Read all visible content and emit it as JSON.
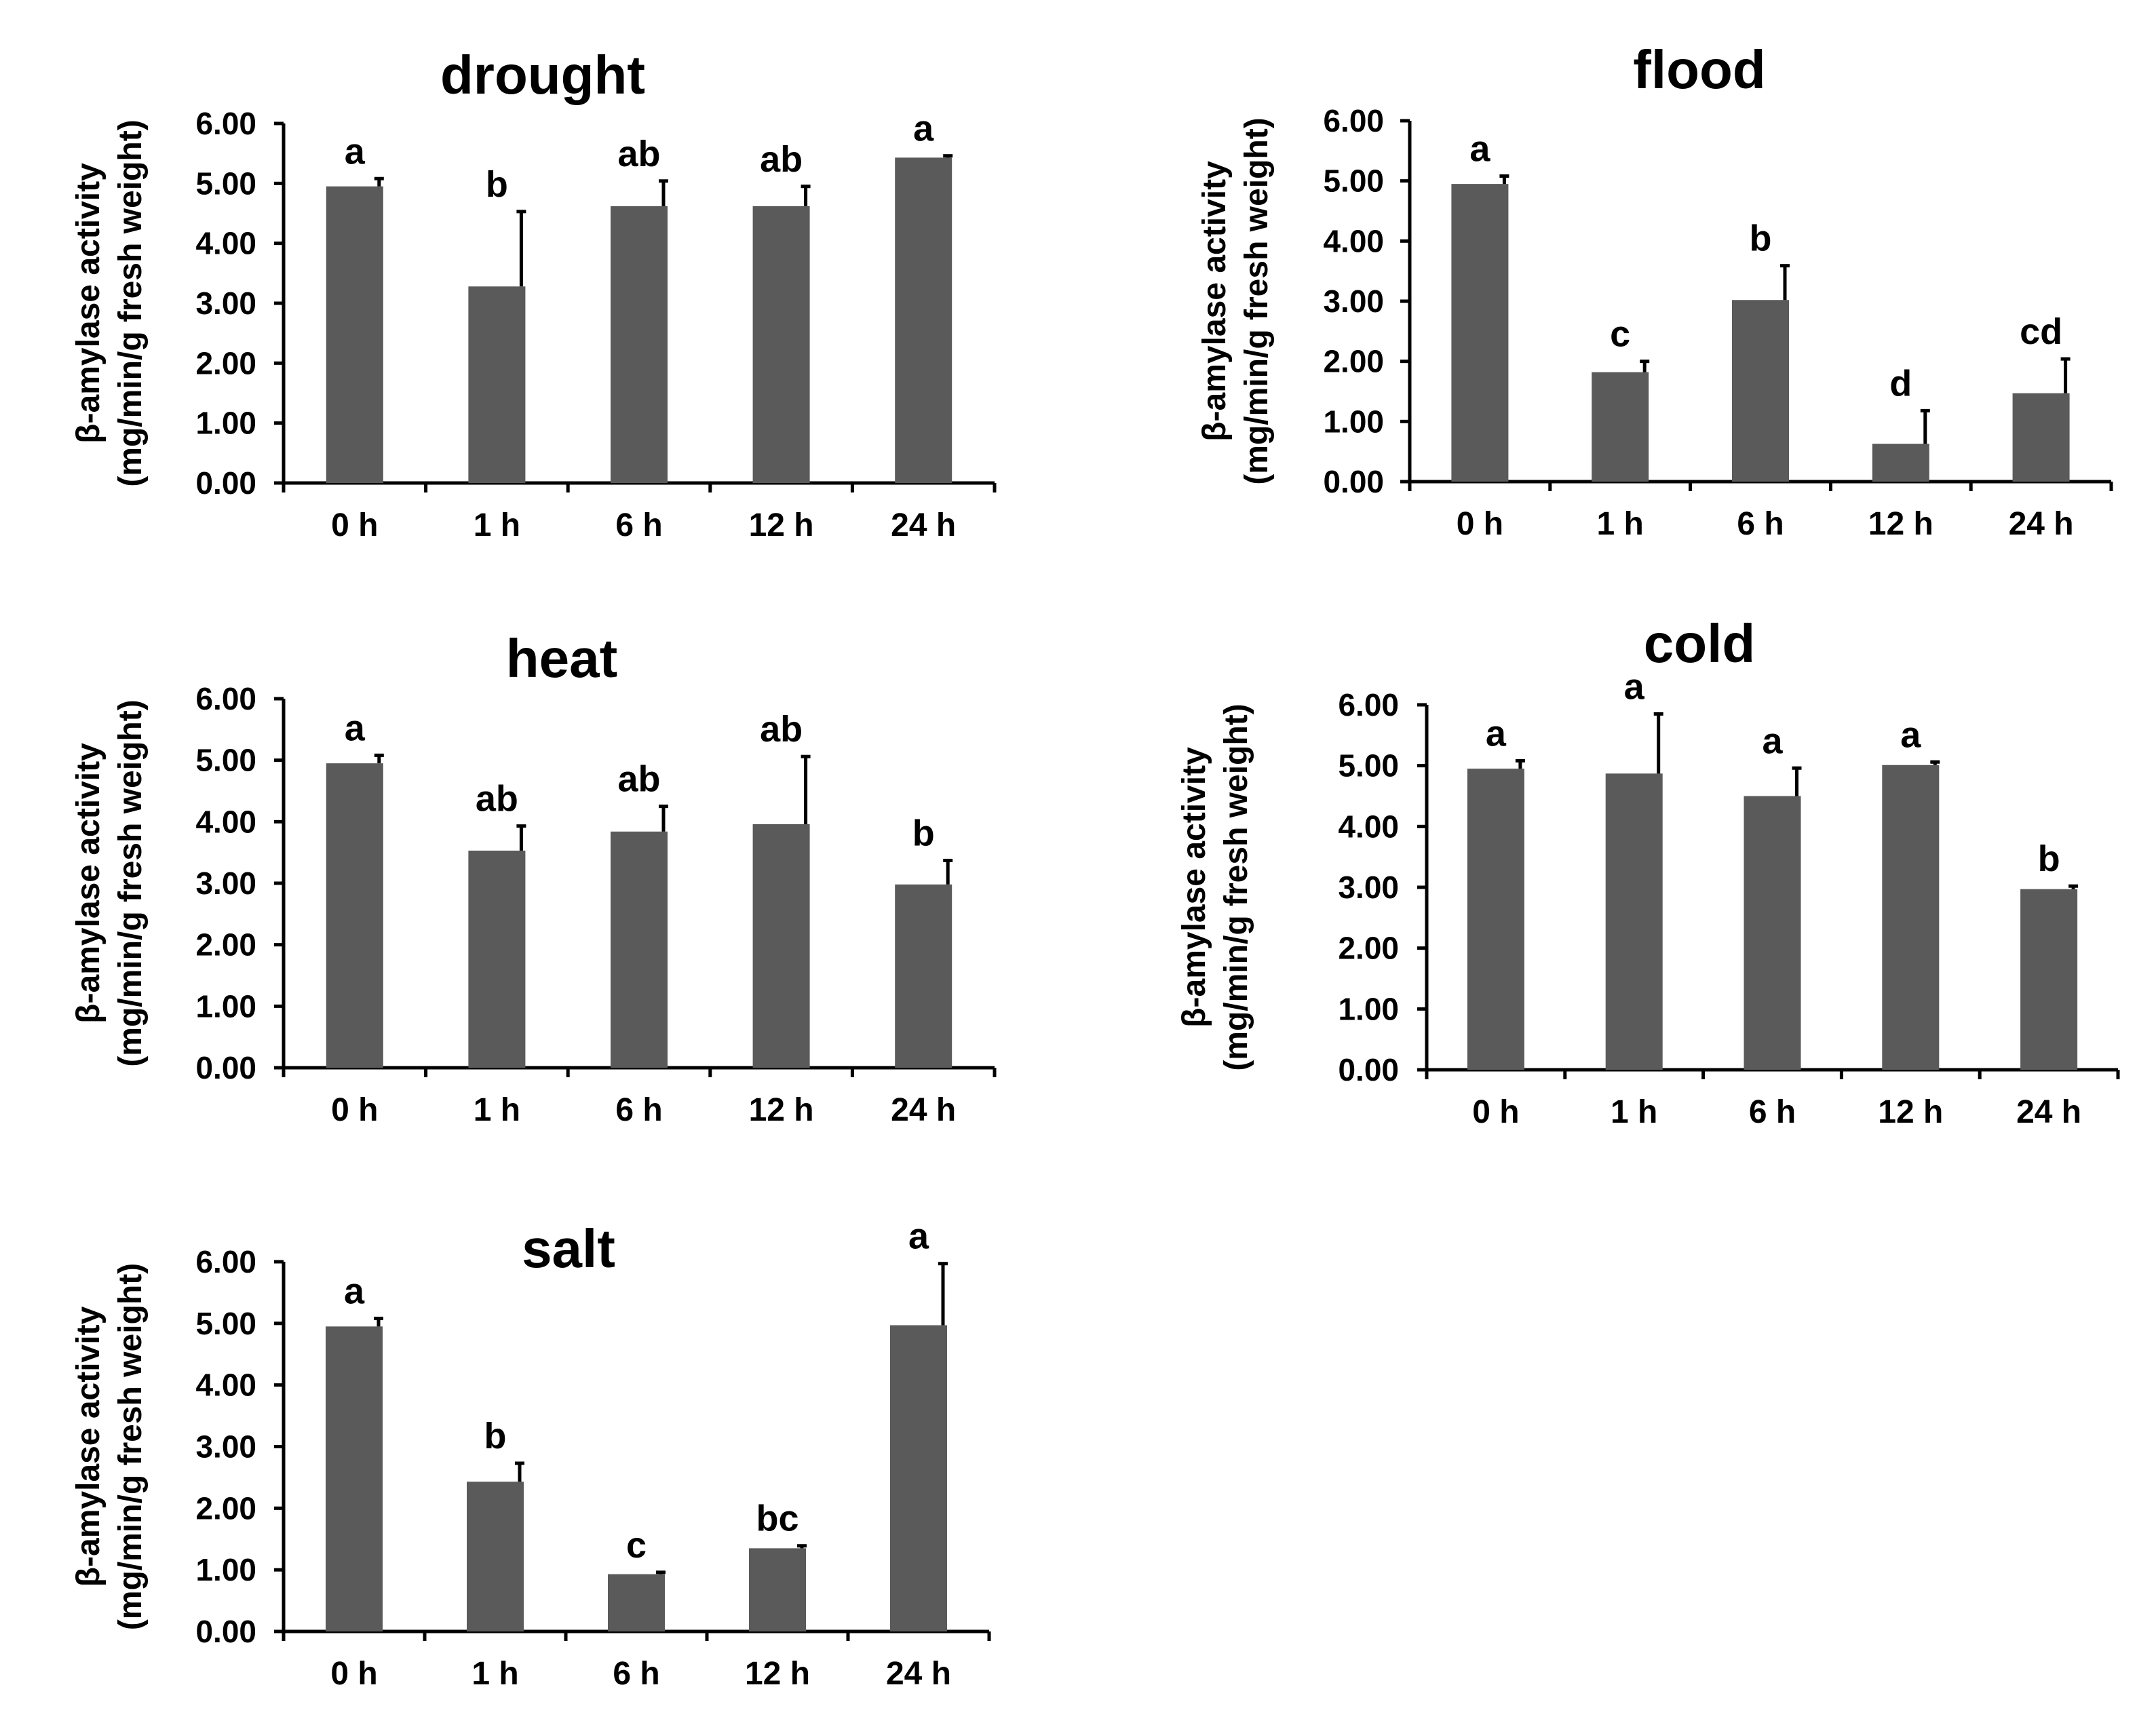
{
  "chart_data": [
    {
      "type": "bar",
      "title": "drought",
      "ylabel": [
        "β-amylase activity",
        "(mg/min/g fresh weight)"
      ],
      "xlabel": "",
      "categories": [
        "0 h",
        "1 h",
        "6 h",
        "12 h",
        "24 h"
      ],
      "values": [
        4.95,
        3.28,
        4.62,
        4.62,
        5.43
      ],
      "errors": [
        0.13,
        1.25,
        0.42,
        0.33,
        0.03
      ],
      "significance": [
        "a",
        "b",
        "ab",
        "ab",
        "a"
      ],
      "ylim": [
        0,
        6
      ],
      "yticks": [
        "0.00",
        "1.00",
        "2.00",
        "3.00",
        "4.00",
        "5.00",
        "6.00"
      ],
      "color": "#5a5a5a"
    },
    {
      "type": "bar",
      "title": "flood",
      "ylabel": [
        "β-amylase activity",
        "(mg/min/g fresh weight)"
      ],
      "xlabel": "",
      "categories": [
        "0 h",
        "1 h",
        "6 h",
        "12 h",
        "24 h"
      ],
      "values": [
        4.95,
        1.82,
        3.02,
        0.63,
        1.47
      ],
      "errors": [
        0.13,
        0.18,
        0.57,
        0.55,
        0.57
      ],
      "significance": [
        "a",
        "c",
        "b",
        "d",
        "cd"
      ],
      "ylim": [
        0,
        6
      ],
      "yticks": [
        "0.00",
        "1.00",
        "2.00",
        "3.00",
        "4.00",
        "5.00",
        "6.00"
      ],
      "color": "#5a5a5a"
    },
    {
      "type": "bar",
      "title": "heat",
      "ylabel": [
        "β-amylase activity",
        "(mg/min/g fresh weight)"
      ],
      "xlabel": "",
      "categories": [
        "0 h",
        "1 h",
        "6 h",
        "12 h",
        "24 h"
      ],
      "values": [
        4.95,
        3.53,
        3.84,
        3.96,
        2.98
      ],
      "errors": [
        0.13,
        0.4,
        0.41,
        1.1,
        0.39
      ],
      "significance": [
        "a",
        "ab",
        "ab",
        "ab",
        "b"
      ],
      "ylim": [
        0,
        6
      ],
      "yticks": [
        "0.00",
        "1.00",
        "2.00",
        "3.00",
        "4.00",
        "5.00",
        "6.00"
      ],
      "color": "#5a5a5a"
    },
    {
      "type": "bar",
      "title": "cold",
      "ylabel": [
        "β-amylase activity",
        "(mg/min/g fresh weight)"
      ],
      "xlabel": "",
      "categories": [
        "0 h",
        "1 h",
        "6 h",
        "12 h",
        "24 h"
      ],
      "values": [
        4.95,
        4.87,
        4.5,
        5.01,
        2.97
      ],
      "errors": [
        0.13,
        0.98,
        0.46,
        0.05,
        0.05
      ],
      "significance": [
        "a",
        "a",
        "a",
        "a",
        "b"
      ],
      "ylim": [
        0,
        6
      ],
      "yticks": [
        "0.00",
        "1.00",
        "2.00",
        "3.00",
        "4.00",
        "5.00",
        "6.00"
      ],
      "color": "#5a5a5a"
    },
    {
      "type": "bar",
      "title": "salt",
      "ylabel": [
        "β-amylase activity",
        "(mg/min/g fresh weight)"
      ],
      "xlabel": "",
      "categories": [
        "0 h",
        "1 h",
        "6 h",
        "12 h",
        "24 h"
      ],
      "values": [
        4.95,
        2.43,
        0.93,
        1.35,
        4.97
      ],
      "errors": [
        0.13,
        0.3,
        0.03,
        0.04,
        1.0
      ],
      "significance": [
        "a",
        "b",
        "c",
        "bc",
        "a"
      ],
      "ylim": [
        0,
        6
      ],
      "yticks": [
        "0.00",
        "1.00",
        "2.00",
        "3.00",
        "4.00",
        "5.00",
        "6.00"
      ],
      "color": "#5a5a5a"
    }
  ]
}
